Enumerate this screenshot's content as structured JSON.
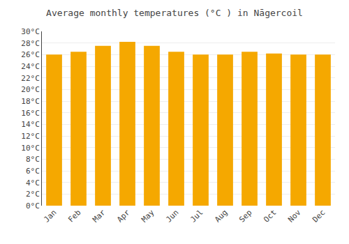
{
  "chart_data": {
    "type": "bar",
    "title": "Average monthly temperatures (°C ) in Nāgercoil",
    "categories": [
      "Jan",
      "Feb",
      "Mar",
      "Apr",
      "May",
      "Jun",
      "Jul",
      "Aug",
      "Sep",
      "Oct",
      "Nov",
      "Dec"
    ],
    "values": [
      26.0,
      26.5,
      27.5,
      28.2,
      27.5,
      26.5,
      26.0,
      26.0,
      26.5,
      26.2,
      26.0,
      26.0
    ],
    "color": "#F5A800",
    "ylim": [
      0,
      30
    ],
    "yticks": [
      {
        "value": 0,
        "label": "0°C"
      },
      {
        "value": 2,
        "label": "2°C"
      },
      {
        "value": 4,
        "label": "4°C"
      },
      {
        "value": 6,
        "label": "6°C"
      },
      {
        "value": 8,
        "label": "8°C"
      },
      {
        "value": 10,
        "label": "10°C"
      },
      {
        "value": 12,
        "label": "12°C"
      },
      {
        "value": 14,
        "label": "14°C"
      },
      {
        "value": 16,
        "label": "16°C"
      },
      {
        "value": 18,
        "label": "18°C"
      },
      {
        "value": 20,
        "label": "20°C"
      },
      {
        "value": 22,
        "label": "22°C"
      },
      {
        "value": 24,
        "label": "24°C"
      },
      {
        "value": 26,
        "label": "26°C"
      },
      {
        "value": 28,
        "label": "28°C"
      },
      {
        "value": 30,
        "label": "30°C"
      }
    ],
    "grid": true
  }
}
